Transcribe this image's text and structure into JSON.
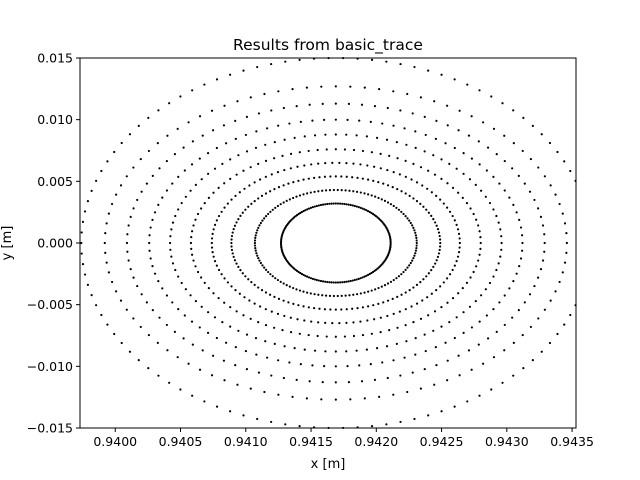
{
  "chart_data": {
    "type": "scatter",
    "title": "Results from basic_trace",
    "xlabel": "x [m]",
    "ylabel": "y [m]",
    "xlim": [
      0.93973,
      0.94353
    ],
    "ylim": [
      -0.015,
      0.015
    ],
    "x_ticks": [
      0.94,
      0.9405,
      0.941,
      0.9415,
      0.942,
      0.9425,
      0.943,
      0.9435
    ],
    "x_tick_labels": [
      "0.9400",
      "0.9405",
      "0.9410",
      "0.9415",
      "0.9420",
      "0.9425",
      "0.9430",
      "0.9435"
    ],
    "y_ticks": [
      -0.015,
      -0.01,
      -0.005,
      0.0,
      0.005,
      0.01,
      0.015
    ],
    "y_tick_labels": [
      "−0.015",
      "−0.010",
      "−0.005",
      "0.000",
      "0.005",
      "0.010",
      "0.015"
    ],
    "grid": false,
    "marker_color": "#000000",
    "series": [
      {
        "center": [
          0.94169,
          0.0
        ],
        "rx": 0.00042,
        "ry": 0.0032,
        "points": 160
      },
      {
        "center": [
          0.94169,
          0.0
        ],
        "rx": 0.00062,
        "ry": 0.0043,
        "points": 130
      },
      {
        "center": [
          0.94169,
          0.0
        ],
        "rx": 0.0008,
        "ry": 0.0054,
        "points": 120
      },
      {
        "center": [
          0.94169,
          0.0
        ],
        "rx": 0.00095,
        "ry": 0.0065,
        "points": 110
      },
      {
        "center": [
          0.94169,
          0.0
        ],
        "rx": 0.00111,
        "ry": 0.0076,
        "points": 100
      },
      {
        "center": [
          0.94169,
          0.0
        ],
        "rx": 0.00127,
        "ry": 0.0088,
        "points": 100
      },
      {
        "center": [
          0.94169,
          0.0
        ],
        "rx": 0.00143,
        "ry": 0.01,
        "points": 100
      },
      {
        "center": [
          0.94169,
          0.0
        ],
        "rx": 0.0016,
        "ry": 0.0113,
        "points": 100
      },
      {
        "center": [
          0.94169,
          0.0
        ],
        "rx": 0.00177,
        "ry": 0.0127,
        "points": 100
      },
      {
        "center": [
          0.94169,
          0.0
        ],
        "rx": 0.00195,
        "ry": 0.015,
        "points": 110
      }
    ]
  }
}
